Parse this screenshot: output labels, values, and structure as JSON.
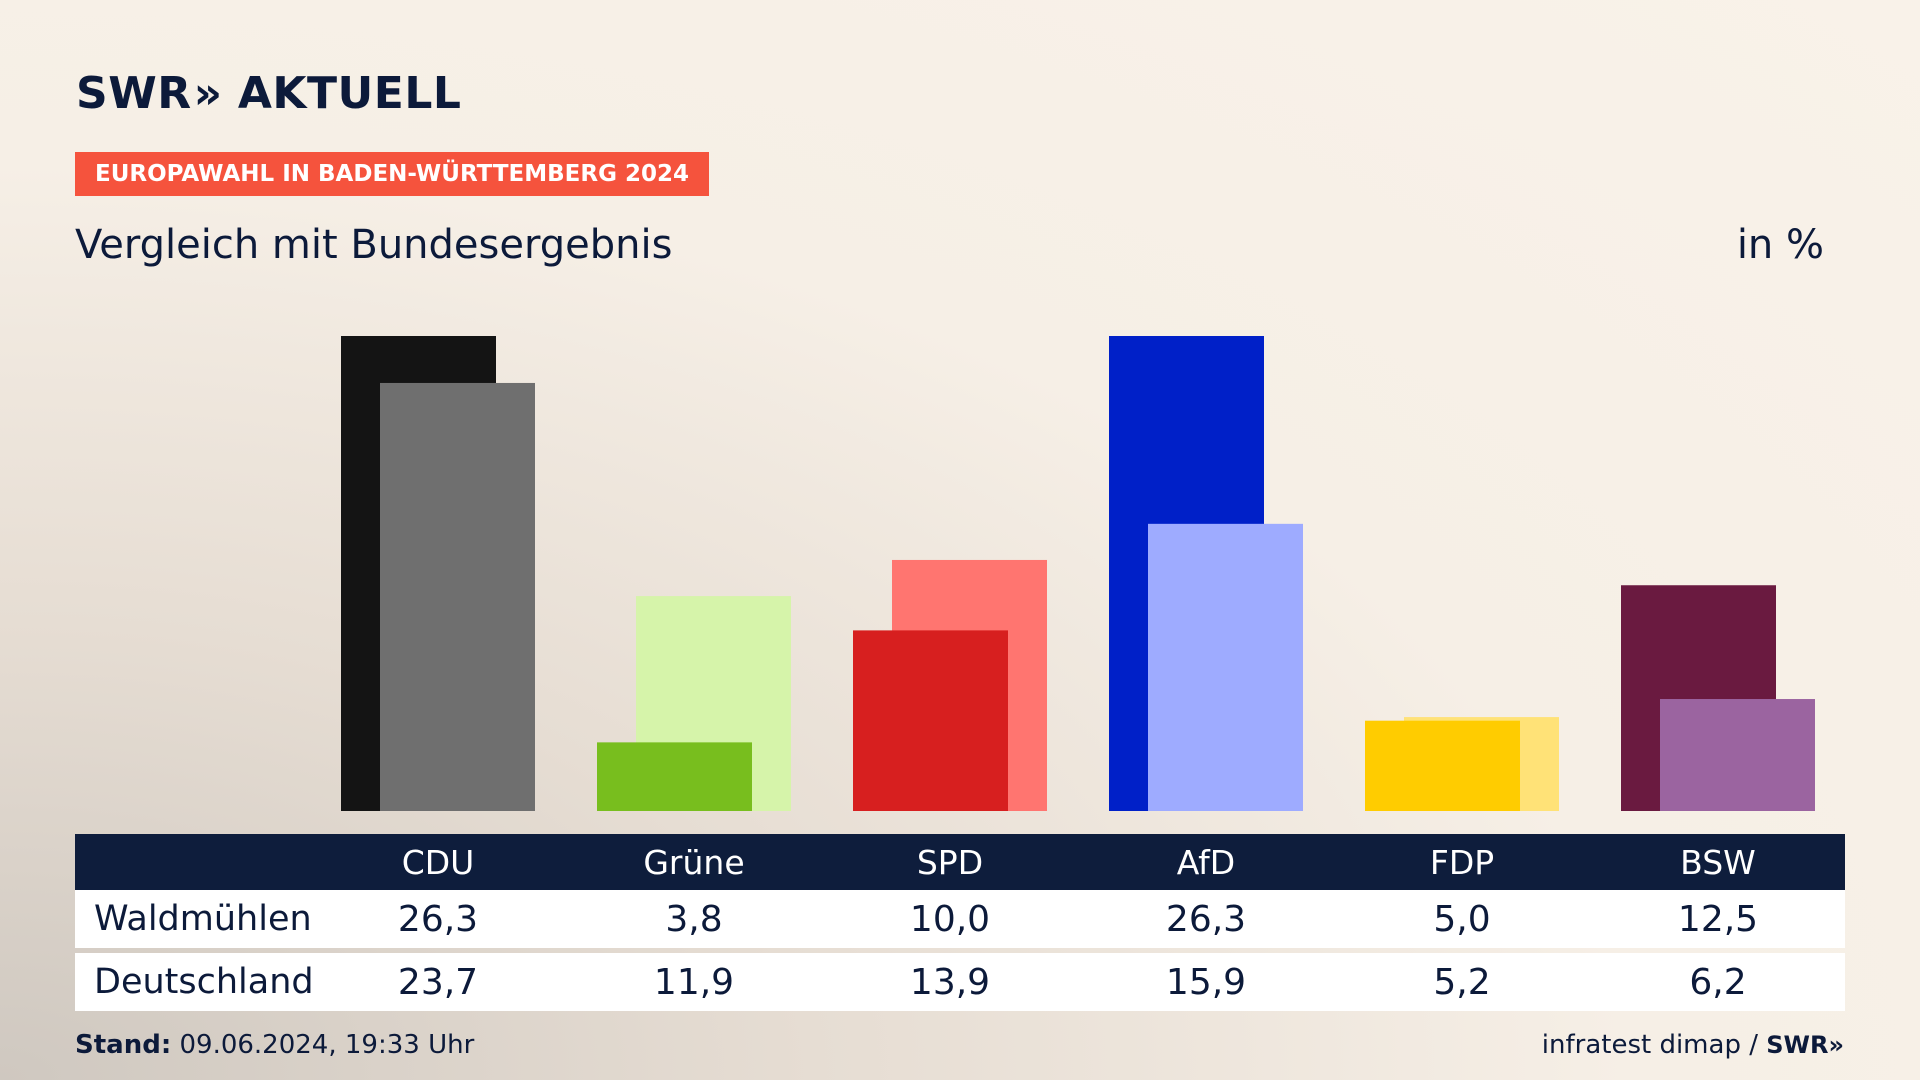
{
  "brand": {
    "name": "SWR",
    "chevrons": "»",
    "product": "AKTUELL"
  },
  "tag": "EUROPAWAHL IN BADEN-WÜRTTEMBERG 2024",
  "subtitle": "Vergleich mit Bundesergebnis",
  "unit": "in %",
  "footer": {
    "stand_label": "Stand:",
    "stand_value": "09.06.2024, 19:33 Uhr",
    "source": "infratest dimap /",
    "source_logo": "SWR»"
  },
  "chart_data": {
    "type": "bar",
    "categories": [
      "CDU",
      "Grüne",
      "SPD",
      "AfD",
      "FDP",
      "BSW"
    ],
    "series": [
      {
        "name": "Waldmühlen",
        "values": [
          26.3,
          3.8,
          10.0,
          26.3,
          5.0,
          12.5
        ],
        "labels": [
          "26,3",
          "3,8",
          "10,0",
          "26,3",
          "5,0",
          "12,5"
        ]
      },
      {
        "name": "Deutschland",
        "values": [
          23.7,
          11.9,
          13.9,
          15.9,
          5.2,
          6.2
        ],
        "labels": [
          "23,7",
          "11,9",
          "13,9",
          "15,9",
          "5,2",
          "6,2"
        ]
      }
    ],
    "colors": {
      "primary": [
        "#141414",
        "#78be1e",
        "#d71f1f",
        "#0020c8",
        "#ffcc00",
        "#6a1a40"
      ],
      "secondary": [
        "#6f6f6f",
        "#d6f4aa",
        "#ff7570",
        "#9eabff",
        "#ffe277",
        "#9b64a0"
      ]
    },
    "ylabel": "in %",
    "grid": false,
    "legend": "table-below"
  }
}
